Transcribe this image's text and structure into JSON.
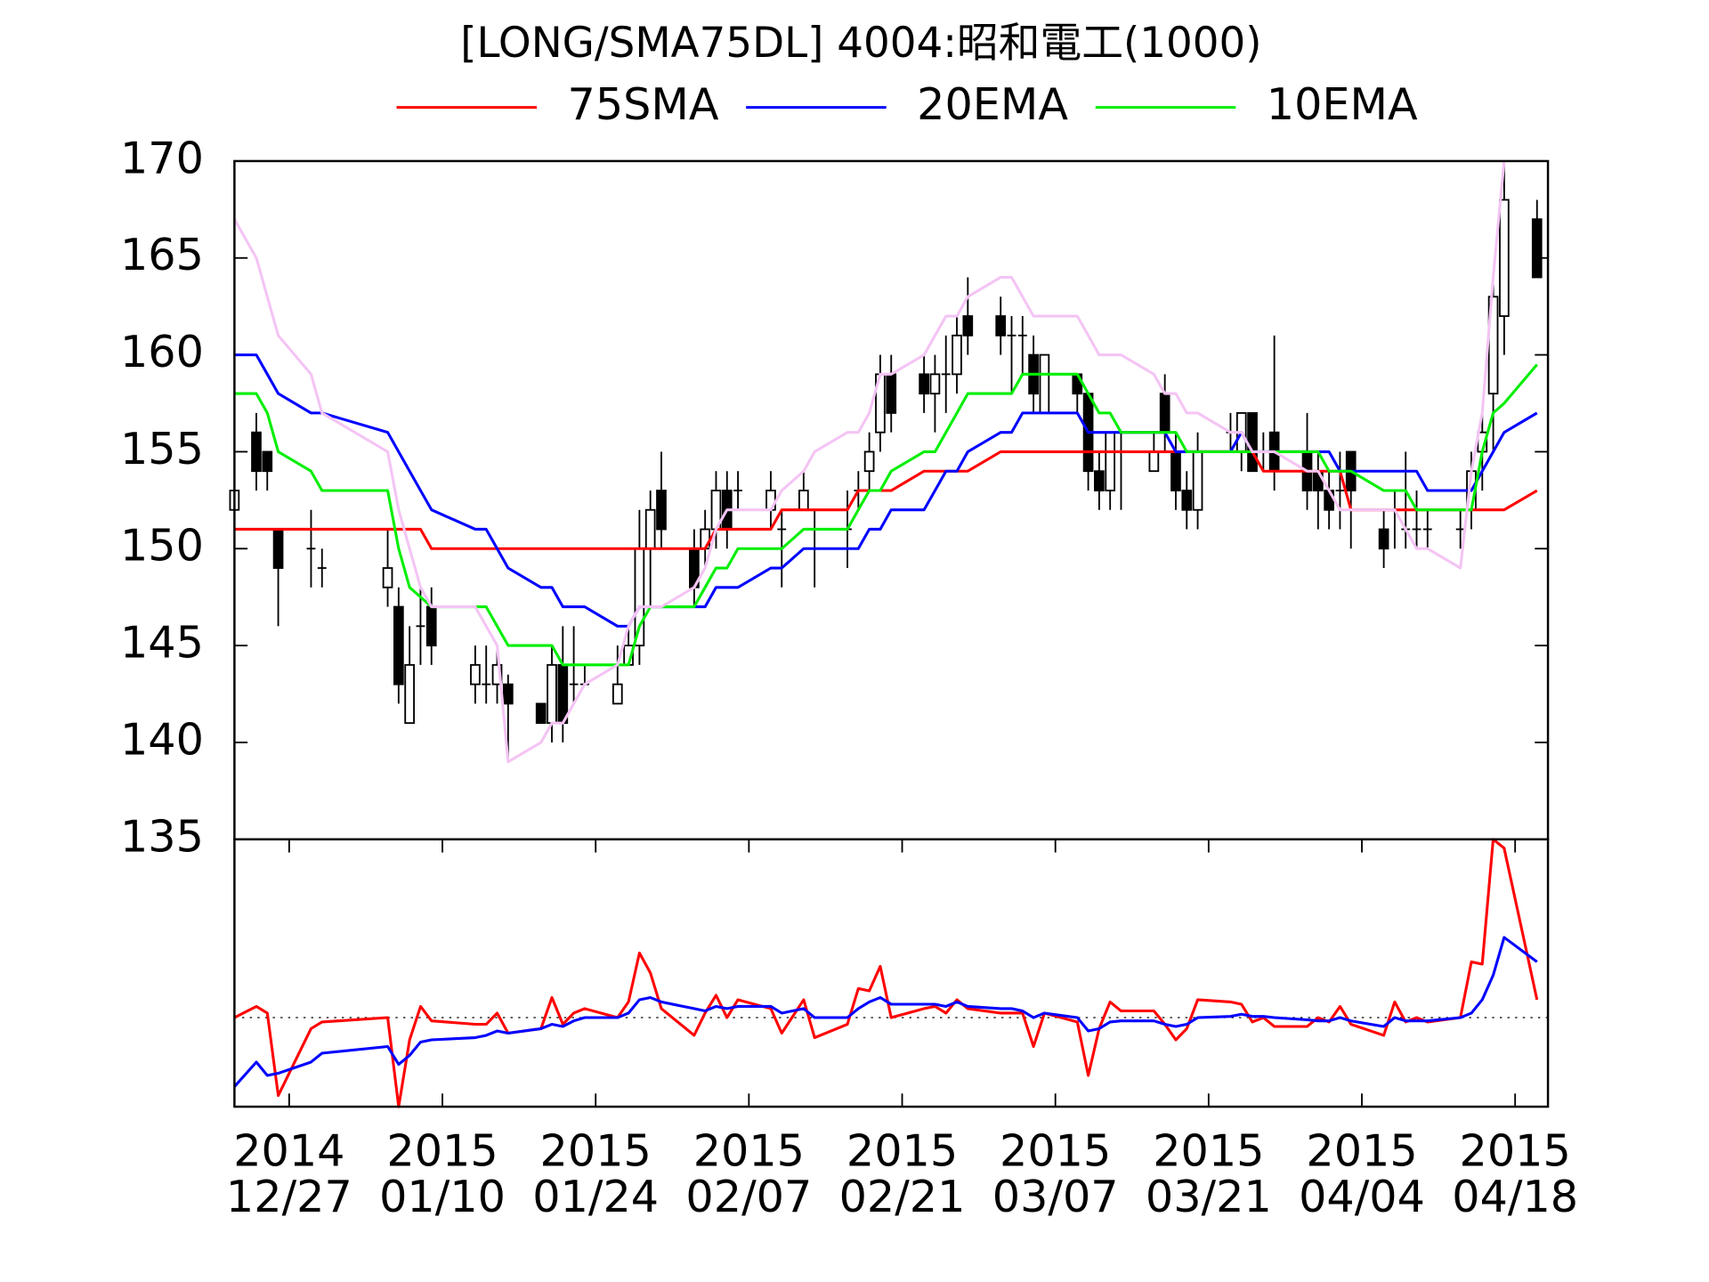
{
  "chart_data": [
    {
      "type": "candlestick",
      "title": "[LONG/SMA75DL] 4004:昭和電工(1000)",
      "x": [
        "2014-12-22",
        "2014-12-24",
        "2014-12-25",
        "2014-12-26",
        "2014-12-29",
        "2014-12-30",
        "2015-01-05",
        "2015-01-06",
        "2015-01-07",
        "2015-01-08",
        "2015-01-09",
        "2015-01-13",
        "2015-01-14",
        "2015-01-15",
        "2015-01-16",
        "2015-01-19",
        "2015-01-20",
        "2015-01-21",
        "2015-01-22",
        "2015-01-23",
        "2015-01-26",
        "2015-01-27",
        "2015-01-28",
        "2015-01-29",
        "2015-01-30",
        "2015-02-02",
        "2015-02-03",
        "2015-02-04",
        "2015-02-05",
        "2015-02-06",
        "2015-02-09",
        "2015-02-10",
        "2015-02-12",
        "2015-02-13",
        "2015-02-16",
        "2015-02-17",
        "2015-02-18",
        "2015-02-19",
        "2015-02-20",
        "2015-02-23",
        "2015-02-24",
        "2015-02-25",
        "2015-02-26",
        "2015-02-27",
        "2015-03-02",
        "2015-03-03",
        "2015-03-04",
        "2015-03-05",
        "2015-03-06",
        "2015-03-09",
        "2015-03-10",
        "2015-03-11",
        "2015-03-12",
        "2015-03-13",
        "2015-03-16",
        "2015-03-17",
        "2015-03-18",
        "2015-03-19",
        "2015-03-20",
        "2015-03-23",
        "2015-03-24",
        "2015-03-25",
        "2015-03-26",
        "2015-03-27",
        "2015-03-30",
        "2015-03-31",
        "2015-04-01",
        "2015-04-02",
        "2015-04-03",
        "2015-04-06",
        "2015-04-07",
        "2015-04-08",
        "2015-04-09",
        "2015-04-10",
        "2015-04-13",
        "2015-04-14",
        "2015-04-15",
        "2015-04-16",
        "2015-04-17",
        "2015-04-20"
      ],
      "open": [
        152,
        156,
        155,
        151,
        150,
        149,
        148,
        147,
        141,
        146,
        147,
        143,
        143,
        143,
        143,
        142,
        141,
        144,
        143,
        143,
        142,
        144,
        145,
        150,
        153,
        150,
        150,
        151,
        153,
        153,
        152,
        151,
        152,
        150,
        151,
        153,
        154,
        156,
        159,
        159,
        158,
        159,
        159,
        162,
        162,
        161,
        161,
        160,
        157,
        159,
        158,
        154,
        153,
        155,
        154,
        158,
        155,
        153,
        152,
        156,
        155,
        157,
        155,
        156,
        155,
        154,
        153,
        153,
        155,
        151,
        152,
        151,
        151,
        151,
        151,
        152,
        155,
        158,
        162,
        167
      ],
      "high": [
        153,
        157,
        155,
        151,
        152,
        150,
        151,
        148,
        146,
        148,
        148,
        145,
        145,
        145,
        143.5,
        142,
        145,
        146,
        146,
        144,
        145,
        146,
        152,
        153,
        155,
        151,
        152,
        154,
        154,
        154,
        154,
        152,
        154,
        152,
        153,
        154,
        156,
        160,
        160,
        160,
        160,
        161,
        162,
        164,
        163,
        162,
        162,
        161,
        160,
        159,
        158,
        155,
        156,
        156,
        156,
        159,
        156,
        154,
        156,
        157,
        157,
        157,
        156,
        161,
        157,
        155,
        154,
        155,
        155,
        152,
        153,
        155,
        153,
        152,
        152,
        155,
        157,
        164,
        170,
        168
      ],
      "low": [
        152,
        153,
        153,
        146,
        148,
        148,
        147,
        142,
        141,
        144,
        144,
        142,
        142,
        142,
        139,
        141,
        140,
        140,
        142,
        143,
        142,
        144,
        144,
        147,
        150,
        147,
        149,
        150,
        150,
        152,
        151,
        148,
        152,
        148,
        149,
        152,
        153,
        155,
        156,
        157,
        156,
        157,
        158,
        160,
        160,
        158,
        159,
        157,
        157,
        157,
        153,
        152,
        152,
        152,
        154,
        155,
        152,
        151,
        151,
        155,
        154,
        154,
        154,
        153,
        152,
        151,
        151,
        151,
        150,
        149,
        150,
        150,
        150,
        150,
        150,
        151,
        153,
        155,
        160,
        164
      ],
      "close": [
        153,
        154,
        154,
        149,
        150,
        149,
        149,
        143,
        144,
        146,
        145,
        144,
        143,
        144,
        142,
        141,
        144,
        141,
        143,
        143,
        143,
        145,
        150,
        152,
        151,
        148,
        151,
        153,
        151,
        153,
        153,
        151,
        153,
        150,
        151,
        153,
        155,
        159,
        157,
        158,
        159,
        159,
        161,
        161,
        161,
        161,
        161,
        158,
        160,
        158,
        154,
        153,
        156,
        155,
        155,
        156,
        153,
        152,
        155,
        156,
        157,
        154,
        155,
        154,
        153,
        153,
        152,
        153,
        153,
        150,
        152,
        151,
        151,
        151,
        151,
        154,
        156,
        163,
        168,
        164
      ],
      "series": [
        {
          "name": "75SMA",
          "color": "#ff0000",
          "values": [
            151,
            151,
            151,
            151,
            151,
            151,
            151,
            151,
            151,
            151,
            150,
            150,
            150,
            150,
            150,
            150,
            150,
            150,
            150,
            150,
            150,
            150,
            150,
            150,
            150,
            150,
            150,
            151,
            151,
            151,
            151,
            152,
            152,
            152,
            152,
            153,
            153,
            153,
            153,
            154,
            154,
            154,
            154,
            154,
            155,
            155,
            155,
            155,
            155,
            155,
            155,
            155,
            155,
            155,
            155,
            155,
            155,
            155,
            155,
            155,
            155,
            155,
            154,
            154,
            154,
            154,
            154,
            154,
            152,
            152,
            152,
            152,
            152,
            152,
            152,
            152,
            152,
            152,
            152,
            153
          ]
        },
        {
          "name": "20EMA",
          "color": "#0000ff",
          "values": [
            160,
            160,
            159,
            158,
            157,
            157,
            156,
            155,
            154,
            153,
            152,
            151,
            151,
            150,
            149,
            148,
            148,
            147,
            147,
            147,
            146,
            146,
            147,
            147,
            147,
            147,
            147,
            148,
            148,
            148,
            149,
            149,
            150,
            150,
            150,
            150,
            151,
            151,
            152,
            152,
            153,
            154,
            154,
            155,
            156,
            156,
            157,
            157,
            157,
            157,
            156,
            156,
            156,
            156,
            156,
            156,
            155,
            155,
            155,
            155,
            156,
            155,
            155,
            155,
            155,
            155,
            155,
            154,
            154,
            154,
            154,
            154,
            154,
            153,
            153,
            153,
            154,
            155,
            156,
            157
          ]
        },
        {
          "name": "10EMA",
          "color": "#00ee00",
          "values": [
            158,
            158,
            157,
            155,
            154,
            153,
            153,
            150,
            148,
            147.5,
            147,
            147,
            147,
            146,
            145,
            145,
            145,
            144,
            144,
            144,
            144,
            144,
            146,
            147,
            147,
            147,
            148,
            149,
            149,
            150,
            150,
            150,
            151,
            151,
            151,
            152,
            153,
            153,
            154,
            155,
            155,
            156,
            157,
            158,
            158,
            158,
            159,
            159,
            159,
            159,
            158,
            157,
            157,
            156,
            156,
            156,
            156,
            155,
            155,
            155,
            155,
            155,
            155,
            155,
            155,
            155,
            154,
            154,
            154,
            153,
            153,
            153,
            152,
            152,
            152,
            152,
            155,
            157,
            157.5,
            159.5
          ]
        },
        {
          "color": "#f4c4f4",
          "values": [
            167,
            165,
            163,
            161,
            159,
            157,
            155,
            152,
            150,
            148,
            147,
            147,
            146,
            145,
            139,
            140,
            141,
            141,
            142,
            143,
            144,
            146,
            147,
            147,
            147,
            148,
            149,
            151,
            152,
            152,
            152,
            153,
            154,
            155,
            156,
            156,
            157,
            159,
            159,
            160,
            161,
            162,
            162,
            163,
            164,
            164,
            163,
            162,
            162,
            162,
            161,
            160,
            160,
            160,
            159,
            158,
            158,
            157,
            157,
            156,
            156,
            155,
            155,
            155,
            154,
            154,
            153,
            152,
            152,
            152,
            152,
            151,
            150,
            150,
            149,
            154,
            157,
            164,
            170,
            null
          ]
        }
      ],
      "xlim": [
        "2014-12-22",
        "2015-04-21"
      ],
      "ylim": [
        135,
        170
      ],
      "yticks": [
        135,
        140,
        145,
        150,
        155,
        160,
        165,
        170
      ]
    },
    {
      "type": "line",
      "x": [
        "2014-12-22",
        "2014-12-24",
        "2014-12-25",
        "2014-12-26",
        "2014-12-29",
        "2014-12-30",
        "2015-01-05",
        "2015-01-06",
        "2015-01-07",
        "2015-01-08",
        "2015-01-09",
        "2015-01-13",
        "2015-01-14",
        "2015-01-15",
        "2015-01-16",
        "2015-01-19",
        "2015-01-20",
        "2015-01-21",
        "2015-01-22",
        "2015-01-23",
        "2015-01-26",
        "2015-01-27",
        "2015-01-28",
        "2015-01-29",
        "2015-01-30",
        "2015-02-02",
        "2015-02-03",
        "2015-02-04",
        "2015-02-05",
        "2015-02-06",
        "2015-02-09",
        "2015-02-10",
        "2015-02-12",
        "2015-02-13",
        "2015-02-16",
        "2015-02-17",
        "2015-02-18",
        "2015-02-19",
        "2015-02-20",
        "2015-02-23",
        "2015-02-24",
        "2015-02-25",
        "2015-02-26",
        "2015-02-27",
        "2015-03-02",
        "2015-03-03",
        "2015-03-04",
        "2015-03-05",
        "2015-03-06",
        "2015-03-09",
        "2015-03-10",
        "2015-03-11",
        "2015-03-12",
        "2015-03-13",
        "2015-03-16",
        "2015-03-17",
        "2015-03-18",
        "2015-03-19",
        "2015-03-20",
        "2015-03-23",
        "2015-03-24",
        "2015-03-25",
        "2015-03-26",
        "2015-03-27",
        "2015-03-30",
        "2015-03-31",
        "2015-04-01",
        "2015-04-02",
        "2015-04-03",
        "2015-04-06",
        "2015-04-07",
        "2015-04-08",
        "2015-04-09",
        "2015-04-10",
        "2015-04-13",
        "2015-04-14",
        "2015-04-15",
        "2015-04-16",
        "2015-04-17",
        "2015-04-20"
      ],
      "series": [
        {
          "color": "#ff0000",
          "values": [
            0,
            0.5,
            0.2,
            -3.5,
            -0.5,
            -0.2,
            0,
            -4,
            -1,
            0.5,
            -0.15,
            -0.3,
            -0.3,
            0.2,
            -0.7,
            -0.5,
            0.9,
            -0.3,
            0.2,
            0.4,
            0,
            0.7,
            2.9,
            2,
            0.4,
            -0.8,
            0.2,
            1,
            0,
            0.8,
            0.4,
            -0.7,
            0.8,
            -0.9,
            -0.3,
            1.3,
            1.2,
            2.3,
            0,
            0.4,
            0.5,
            0.2,
            0.8,
            0.4,
            0.2,
            0.2,
            0.2,
            -1.3,
            0.2,
            -0.2,
            -2.6,
            -0.5,
            0.7,
            0.3,
            0.3,
            -0.3,
            -1,
            -0.5,
            0.8,
            0.7,
            0.6,
            -0.2,
            0,
            -0.4,
            -0.4,
            0,
            -0.2,
            0.5,
            -0.3,
            -0.8,
            0.7,
            -0.2,
            0,
            -0.2,
            0,
            2.5,
            2.4,
            8,
            7.6,
            0.8
          ]
        },
        {
          "color": "#0000ff",
          "values": [
            -3.1,
            -2,
            -2.6,
            -2.5,
            -2,
            -1.6,
            -1.3,
            -2.1,
            -1.7,
            -1.1,
            -1,
            -0.9,
            -0.8,
            -0.6,
            -0.7,
            -0.5,
            -0.3,
            -0.4,
            -0.15,
            0,
            0,
            0.2,
            0.8,
            0.9,
            0.7,
            0.4,
            0.3,
            0.5,
            0.4,
            0.5,
            0.5,
            0.2,
            0.4,
            0,
            0,
            0.4,
            0.7,
            0.9,
            0.6,
            0.6,
            0.6,
            0.5,
            0.7,
            0.5,
            0.4,
            0.4,
            0.3,
            0,
            0.2,
            0,
            -0.6,
            -0.5,
            -0.2,
            -0.15,
            -0.15,
            -0.3,
            -0.4,
            -0.3,
            0,
            0.05,
            0.15,
            0.05,
            0.05,
            0,
            -0.1,
            -0.15,
            -0.15,
            0,
            -0.15,
            -0.4,
            0,
            -0.15,
            -0.15,
            -0.15,
            0,
            0.2,
            0.8,
            1.9,
            3.6,
            2.5
          ]
        }
      ],
      "baseline": 0,
      "xlim": [
        "2014-12-22",
        "2015-04-21"
      ],
      "ylim": [
        -4,
        8
      ],
      "xticks": [
        {
          "value": "2014-12-27",
          "label": [
            "2014",
            "12/27"
          ]
        },
        {
          "value": "2015-01-10",
          "label": [
            "2015",
            "01/10"
          ]
        },
        {
          "value": "2015-01-24",
          "label": [
            "2015",
            "01/24"
          ]
        },
        {
          "value": "2015-02-07",
          "label": [
            "2015",
            "02/07"
          ]
        },
        {
          "value": "2015-02-21",
          "label": [
            "2015",
            "02/21"
          ]
        },
        {
          "value": "2015-03-07",
          "label": [
            "2015",
            "03/07"
          ]
        },
        {
          "value": "2015-03-21",
          "label": [
            "2015",
            "03/21"
          ]
        },
        {
          "value": "2015-04-04",
          "label": [
            "2015",
            "04/04"
          ]
        },
        {
          "value": "2015-04-18",
          "label": [
            "2015",
            "04/18"
          ]
        }
      ]
    }
  ]
}
